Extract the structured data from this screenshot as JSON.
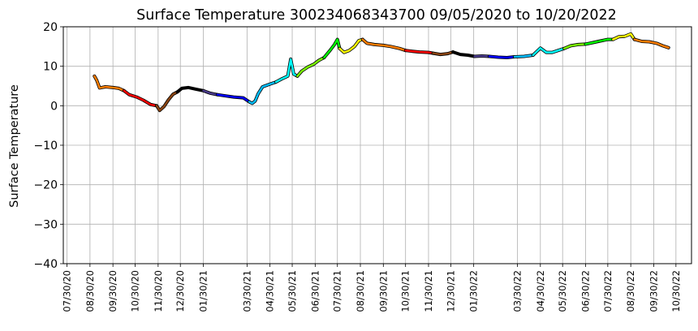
{
  "chart_data": {
    "type": "line",
    "title": "Surface Temperature 300234068343700  09/05/2020 to 10/20/2022",
    "ylabel": "Surface Temperature",
    "xlabel": "",
    "ylim": [
      -40,
      20
    ],
    "yticks": [
      20,
      10,
      0,
      -10,
      -20,
      -30,
      -40
    ],
    "grid": true,
    "xlim": [
      "2020-07-25",
      "2022-11-20"
    ],
    "xticks": [
      {
        "date": "2020-07-30",
        "label": "07/30/20"
      },
      {
        "date": "2020-08-30",
        "label": "08/30/20"
      },
      {
        "date": "2020-09-30",
        "label": "09/30/20"
      },
      {
        "date": "2020-10-30",
        "label": "10/30/20"
      },
      {
        "date": "2020-11-30",
        "label": "11/30/20"
      },
      {
        "date": "2020-12-30",
        "label": "12/30/20"
      },
      {
        "date": "2021-01-30",
        "label": "01/30/21"
      },
      {
        "date": "2021-03-30",
        "label": "03/30/21"
      },
      {
        "date": "2021-04-30",
        "label": "04/30/21"
      },
      {
        "date": "2021-05-30",
        "label": "05/30/21"
      },
      {
        "date": "2021-06-30",
        "label": "06/30/21"
      },
      {
        "date": "2021-07-30",
        "label": "07/30/21"
      },
      {
        "date": "2021-08-30",
        "label": "08/30/21"
      },
      {
        "date": "2021-09-30",
        "label": "09/30/21"
      },
      {
        "date": "2021-10-30",
        "label": "10/30/21"
      },
      {
        "date": "2021-11-30",
        "label": "11/30/21"
      },
      {
        "date": "2021-12-30",
        "label": "12/30/21"
      },
      {
        "date": "2022-01-30",
        "label": "01/30/22"
      },
      {
        "date": "2022-03-30",
        "label": "03/30/22"
      },
      {
        "date": "2022-04-30",
        "label": "04/30/22"
      },
      {
        "date": "2022-05-30",
        "label": "05/30/22"
      },
      {
        "date": "2022-06-30",
        "label": "06/30/22"
      },
      {
        "date": "2022-07-30",
        "label": "07/30/22"
      },
      {
        "date": "2022-08-30",
        "label": "08/30/22"
      },
      {
        "date": "2022-09-30",
        "label": "09/30/22"
      },
      {
        "date": "2022-10-30",
        "label": "10/30/22"
      }
    ],
    "segments": [
      {
        "color": "#ff7f00",
        "points": [
          [
            "2020-09-05",
            7.5
          ],
          [
            "2020-09-08",
            6.5
          ],
          [
            "2020-09-12",
            4.5
          ],
          [
            "2020-09-20",
            4.8
          ],
          [
            "2020-09-30",
            4.6
          ],
          [
            "2020-10-08",
            4.4
          ],
          [
            "2020-10-15",
            3.8
          ]
        ]
      },
      {
        "color": "#ff0000",
        "points": [
          [
            "2020-10-15",
            3.8
          ],
          [
            "2020-10-22",
            2.8
          ],
          [
            "2020-11-01",
            2.2
          ],
          [
            "2020-11-10",
            1.4
          ],
          [
            "2020-11-20",
            0.3
          ],
          [
            "2020-11-28",
            0.0
          ]
        ]
      },
      {
        "color": "#8b4513",
        "points": [
          [
            "2020-11-28",
            0.0
          ],
          [
            "2020-12-02",
            -1.2
          ],
          [
            "2020-12-08",
            -0.2
          ],
          [
            "2020-12-14",
            1.5
          ],
          [
            "2020-12-20",
            2.9
          ],
          [
            "2020-12-26",
            3.5
          ]
        ]
      },
      {
        "color": "#000000",
        "points": [
          [
            "2020-12-26",
            3.5
          ],
          [
            "2021-01-01",
            4.4
          ],
          [
            "2021-01-10",
            4.6
          ],
          [
            "2021-01-20",
            4.2
          ],
          [
            "2021-01-30",
            3.8
          ]
        ]
      },
      {
        "color": "#4b3c8c",
        "points": [
          [
            "2021-01-30",
            3.8
          ],
          [
            "2021-02-08",
            3.2
          ],
          [
            "2021-02-18",
            2.8
          ]
        ]
      },
      {
        "color": "#0000ff",
        "points": [
          [
            "2021-02-18",
            2.8
          ],
          [
            "2021-03-01",
            2.5
          ],
          [
            "2021-03-12",
            2.2
          ],
          [
            "2021-03-25",
            2.0
          ],
          [
            "2021-04-02",
            1.0
          ]
        ]
      },
      {
        "color": "#00bfff",
        "points": [
          [
            "2021-04-02",
            1.0
          ],
          [
            "2021-04-06",
            0.6
          ],
          [
            "2021-04-10",
            1.2
          ],
          [
            "2021-04-14",
            3.0
          ],
          [
            "2021-04-20",
            4.8
          ],
          [
            "2021-04-30",
            5.5
          ],
          [
            "2021-05-08",
            6.0
          ]
        ]
      },
      {
        "color": "#00ffff",
        "points": [
          [
            "2021-05-08",
            6.0
          ],
          [
            "2021-05-16",
            6.8
          ],
          [
            "2021-05-24",
            7.5
          ],
          [
            "2021-05-28",
            11.8
          ],
          [
            "2021-06-01",
            8.0
          ],
          [
            "2021-06-06",
            7.5
          ]
        ]
      },
      {
        "color": "#7cfc00",
        "points": [
          [
            "2021-06-06",
            7.5
          ],
          [
            "2021-06-12",
            8.8
          ],
          [
            "2021-06-20",
            9.8
          ],
          [
            "2021-06-28",
            10.5
          ],
          [
            "2021-07-05",
            11.5
          ],
          [
            "2021-07-12",
            12.2
          ]
        ]
      },
      {
        "color": "#00ff00",
        "points": [
          [
            "2021-07-12",
            12.2
          ],
          [
            "2021-07-20",
            14.0
          ],
          [
            "2021-07-26",
            15.5
          ],
          [
            "2021-07-30",
            16.8
          ],
          [
            "2021-08-02",
            14.5
          ]
        ]
      },
      {
        "color": "#ffff00",
        "points": [
          [
            "2021-08-02",
            14.5
          ],
          [
            "2021-08-08",
            13.5
          ],
          [
            "2021-08-15",
            14.0
          ],
          [
            "2021-08-22",
            15.0
          ],
          [
            "2021-08-28",
            16.5
          ],
          [
            "2021-09-02",
            16.8
          ]
        ]
      },
      {
        "color": "#ff7f00",
        "points": [
          [
            "2021-09-02",
            16.8
          ],
          [
            "2021-09-08",
            15.8
          ],
          [
            "2021-09-18",
            15.5
          ],
          [
            "2021-09-30",
            15.3
          ],
          [
            "2021-10-10",
            15.0
          ],
          [
            "2021-10-22",
            14.5
          ],
          [
            "2021-10-30",
            14.0
          ]
        ]
      },
      {
        "color": "#ff0000",
        "points": [
          [
            "2021-10-30",
            14.0
          ],
          [
            "2021-11-08",
            13.8
          ],
          [
            "2021-11-18",
            13.6
          ],
          [
            "2021-11-30",
            13.5
          ],
          [
            "2021-12-06",
            13.3
          ]
        ]
      },
      {
        "color": "#8b4513",
        "points": [
          [
            "2021-12-06",
            13.3
          ],
          [
            "2021-12-16",
            13.0
          ],
          [
            "2021-12-26",
            13.2
          ],
          [
            "2022-01-02",
            13.6
          ]
        ]
      },
      {
        "color": "#000000",
        "points": [
          [
            "2022-01-02",
            13.6
          ],
          [
            "2022-01-12",
            13.0
          ],
          [
            "2022-01-22",
            12.8
          ],
          [
            "2022-01-31",
            12.5
          ]
        ]
      },
      {
        "color": "#4b3c8c",
        "points": [
          [
            "2022-01-31",
            12.5
          ],
          [
            "2022-02-10",
            12.6
          ],
          [
            "2022-02-20",
            12.5
          ]
        ]
      },
      {
        "color": "#0000ff",
        "points": [
          [
            "2022-02-20",
            12.5
          ],
          [
            "2022-03-04",
            12.3
          ],
          [
            "2022-03-16",
            12.2
          ],
          [
            "2022-03-26",
            12.4
          ]
        ]
      },
      {
        "color": "#00bfff",
        "points": [
          [
            "2022-03-26",
            12.4
          ],
          [
            "2022-04-08",
            12.5
          ],
          [
            "2022-04-20",
            12.8
          ]
        ]
      },
      {
        "color": "#00ffff",
        "points": [
          [
            "2022-04-20",
            12.8
          ],
          [
            "2022-04-30",
            14.6
          ],
          [
            "2022-05-08",
            13.5
          ],
          [
            "2022-05-16",
            13.5
          ],
          [
            "2022-05-24",
            14.0
          ],
          [
            "2022-06-01",
            14.5
          ]
        ]
      },
      {
        "color": "#7cfc00",
        "points": [
          [
            "2022-06-01",
            14.5
          ],
          [
            "2022-06-10",
            15.2
          ],
          [
            "2022-06-20",
            15.5
          ],
          [
            "2022-06-30",
            15.6
          ]
        ]
      },
      {
        "color": "#00ff00",
        "points": [
          [
            "2022-06-30",
            15.6
          ],
          [
            "2022-07-10",
            16.0
          ],
          [
            "2022-07-20",
            16.4
          ],
          [
            "2022-07-30",
            16.8
          ],
          [
            "2022-08-06",
            16.8
          ]
        ]
      },
      {
        "color": "#ffff00",
        "points": [
          [
            "2022-08-06",
            16.8
          ],
          [
            "2022-08-14",
            17.5
          ],
          [
            "2022-08-22",
            17.6
          ],
          [
            "2022-08-30",
            18.2
          ],
          [
            "2022-09-04",
            16.8
          ]
        ]
      },
      {
        "color": "#ff7f00",
        "points": [
          [
            "2022-09-04",
            16.8
          ],
          [
            "2022-09-14",
            16.3
          ],
          [
            "2022-09-24",
            16.2
          ],
          [
            "2022-10-04",
            15.8
          ],
          [
            "2022-10-12",
            15.2
          ],
          [
            "2022-10-20",
            14.7
          ]
        ]
      }
    ]
  }
}
